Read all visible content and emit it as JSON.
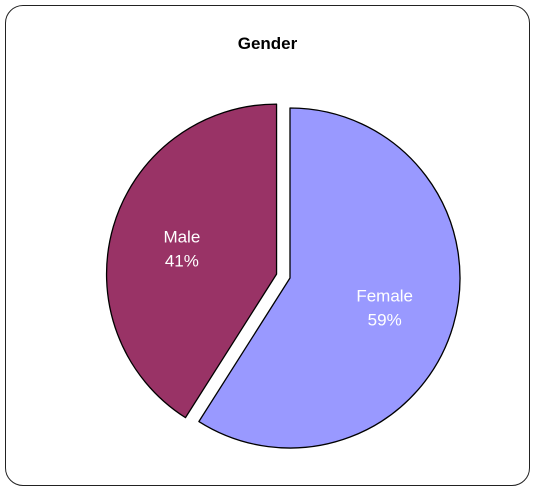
{
  "chart_data": {
    "type": "pie",
    "title": "Gender",
    "slices": [
      {
        "label": "Female",
        "value": 59,
        "value_label": "59%",
        "color": "#9999ff",
        "exploded": false
      },
      {
        "label": "Male",
        "value": 41,
        "value_label": "41%",
        "color": "#993366",
        "exploded": true
      }
    ],
    "start": "12 o'clock",
    "direction": "clockwise",
    "legend": "none",
    "labels_inside": true
  }
}
